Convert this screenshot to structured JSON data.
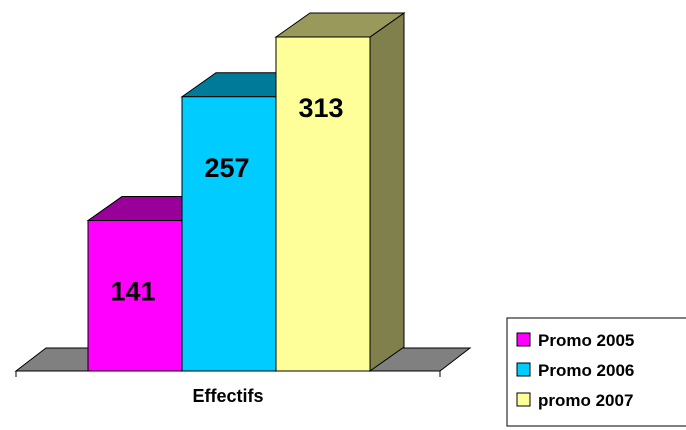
{
  "chart_data": {
    "type": "bar",
    "style": "3d-column",
    "categories": [
      "Effectifs"
    ],
    "series": [
      {
        "name": "Promo 2005",
        "values": [
          141
        ],
        "color": "#FF00FF"
      },
      {
        "name": "Promo 2006",
        "values": [
          257
        ],
        "color": "#00CCFF"
      },
      {
        "name": "promo 2007",
        "values": [
          313
        ],
        "color": "#FFFF99"
      }
    ],
    "data_labels": [
      "141",
      "257",
      "313"
    ],
    "category_label": "Effectifs",
    "ylim": [
      0,
      313
    ],
    "grid": false,
    "legend_position": "bottom-right"
  }
}
